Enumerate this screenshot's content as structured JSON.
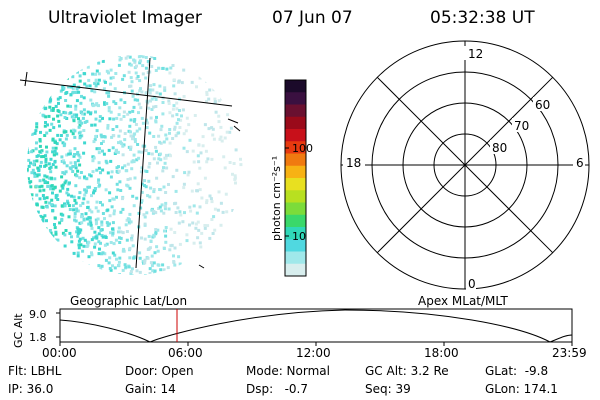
{
  "header": {
    "instrument": "Ultraviolet Imager",
    "date": "07 Jun 07",
    "time": "05:32:38 UT"
  },
  "colorbar": {
    "unit_label": "photon cm⁻²s⁻¹",
    "ticks": [
      "100",
      "10"
    ],
    "colors": [
      "#1b0a2a",
      "#3a1040",
      "#6a1030",
      "#9a0a1a",
      "#c8101a",
      "#e83a10",
      "#f07a10",
      "#f7b214",
      "#e8e020",
      "#b8e020",
      "#7cdc3a",
      "#3ad86a",
      "#30d8b8",
      "#50d8e0",
      "#a0e8ea",
      "#d8eeee"
    ]
  },
  "polar": {
    "mlt_labels": {
      "top": "12",
      "left": "18",
      "right": "6",
      "bottom": "0"
    },
    "lat_labels": [
      "60",
      "70",
      "80"
    ]
  },
  "strip": {
    "left_title": "Geographic Lat/Lon",
    "right_title": "Apex MLat/MLT",
    "yaxis_label": "GC Alt",
    "ytick_top": "9.0",
    "ytick_bottom": "1.8",
    "xticks": [
      "00:00",
      "06:00",
      "12:00",
      "18:00",
      "23:59"
    ],
    "marker_color": "#cc0000"
  },
  "info": {
    "row1": [
      {
        "text": "Flt: LBHL"
      },
      {
        "text": "Door: Open"
      },
      {
        "text": "Mode: Normal"
      },
      {
        "text": "GC Alt: 3.2 Re"
      },
      {
        "text": "GLat:  -9.8"
      }
    ],
    "row2": [
      {
        "text": "IP: 36.0"
      },
      {
        "text": "Gain: 14"
      },
      {
        "text": "Dsp:   -0.7"
      },
      {
        "text": "Seq: 39"
      },
      {
        "text": "GLon: 174.1"
      }
    ]
  }
}
